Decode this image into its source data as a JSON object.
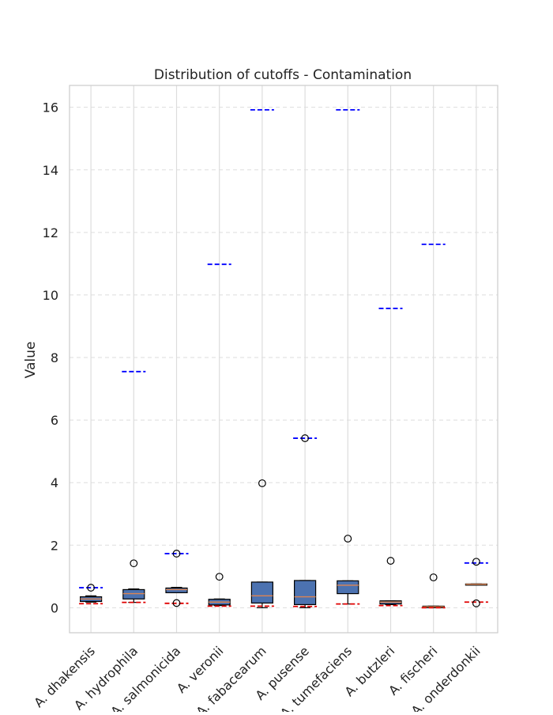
{
  "chart_data": {
    "type": "box",
    "title": "Distribution of cutoffs - Contamination",
    "xlabel": "",
    "ylabel": "Value",
    "ylim": [
      -0.8,
      16.7
    ],
    "yticks": [
      0,
      2,
      4,
      6,
      8,
      10,
      12,
      14,
      16
    ],
    "grid": true,
    "legend": "none",
    "categories": [
      "A. dhakensis",
      "A. hydrophila",
      "A. salmonicida",
      "A. veronii",
      "A. fabacearum",
      "A. pusense",
      "A. tumefaciens",
      "A. butzleri",
      "A. fischeri",
      "A. onderdonkii"
    ],
    "boxes": [
      {
        "whislo": 0.18,
        "q1": 0.2,
        "med": 0.28,
        "q3": 0.35,
        "whishi": 0.38,
        "fliers": [
          0.64
        ],
        "blue_line": 0.64,
        "red_line": 0.13
      },
      {
        "whislo": 0.17,
        "q1": 0.28,
        "med": 0.45,
        "q3": 0.58,
        "whishi": 0.6,
        "fliers": [
          1.42
        ],
        "blue_line": 7.55,
        "red_line": 0.17
      },
      {
        "whislo": 0.48,
        "q1": 0.48,
        "med": 0.58,
        "q3": 0.63,
        "whishi": 0.65,
        "fliers": [
          0.15,
          1.73
        ],
        "blue_line": 1.73,
        "red_line": 0.14
      },
      {
        "whislo": 0.07,
        "q1": 0.09,
        "med": 0.18,
        "q3": 0.27,
        "whishi": 0.28,
        "fliers": [
          0.99
        ],
        "blue_line": 10.98,
        "red_line": 0.05
      },
      {
        "whislo": 0.0,
        "q1": 0.15,
        "med": 0.38,
        "q3": 0.82,
        "whishi": 0.82,
        "fliers": [
          3.98
        ],
        "blue_line": 15.92,
        "red_line": 0.05
      },
      {
        "whislo": 0.0,
        "q1": 0.1,
        "med": 0.35,
        "q3": 0.87,
        "whishi": 0.87,
        "fliers": [
          5.42
        ],
        "blue_line": 5.42,
        "red_line": 0.04
      },
      {
        "whislo": 0.12,
        "q1": 0.45,
        "med": 0.72,
        "q3": 0.86,
        "whishi": 0.86,
        "fliers": [
          2.21
        ],
        "blue_line": 15.92,
        "red_line": 0.12
      },
      {
        "whislo": 0.1,
        "q1": 0.12,
        "med": 0.18,
        "q3": 0.22,
        "whishi": 0.22,
        "fliers": [
          1.5
        ],
        "blue_line": 9.57,
        "red_line": 0.07
      },
      {
        "whislo": 0.0,
        "q1": 0.0,
        "med": 0.03,
        "q3": 0.05,
        "whishi": 0.05,
        "fliers": [
          0.97
        ],
        "blue_line": 11.62,
        "red_line": 0.0
      },
      {
        "whislo": 0.74,
        "q1": 0.74,
        "med": 0.75,
        "q3": 0.76,
        "whishi": 0.76,
        "fliers": [
          0.14,
          1.47
        ],
        "blue_line": 1.43,
        "red_line": 0.18
      }
    ],
    "colors": {
      "box_fill": "#4c72b0",
      "box_edge": "#000000",
      "median": "#dd8452",
      "flier": "#000000",
      "blue_line": "#0000ff",
      "red_line": "#e00000",
      "grid": "#dddddd",
      "axes_edge": "#cccccc"
    }
  }
}
